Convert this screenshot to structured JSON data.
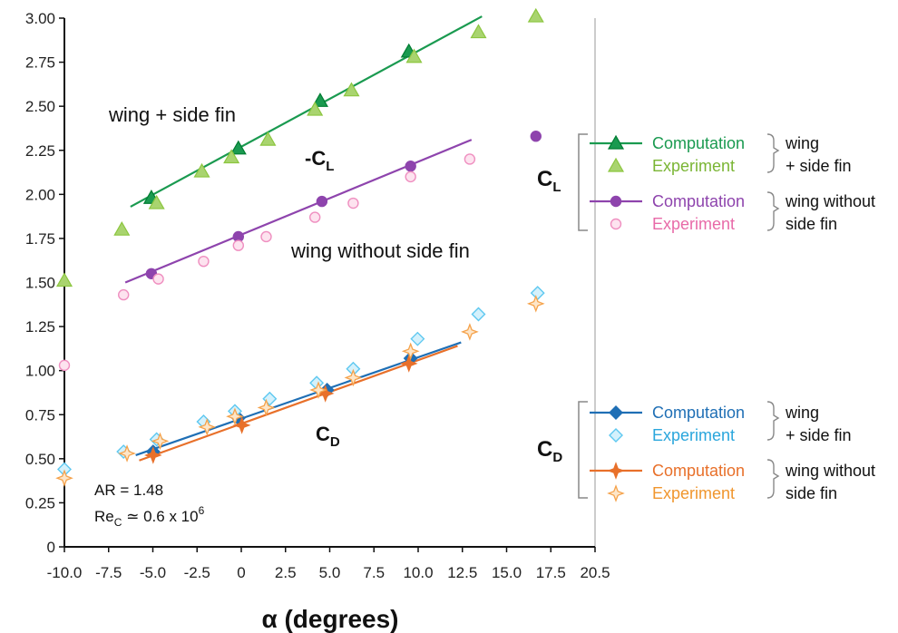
{
  "chart_data": {
    "type": "scatter",
    "xlabel": "α (degrees)",
    "xlim": [
      -10,
      20.5
    ],
    "ylim": [
      0,
      3
    ],
    "x_ticks": [
      "-10.0",
      "-7.5",
      "-5.0",
      "-2.5",
      "0",
      "2.5",
      "5.0",
      "7.5",
      "10.0",
      "12.5",
      "15.0",
      "17.5",
      "20.5"
    ],
    "y_ticks": [
      "0",
      "0.25",
      "0.50",
      "0.75",
      "1.00",
      "1.25",
      "1.50",
      "1.75",
      "2.00",
      "2.25",
      "2.50",
      "2.75",
      "3.00"
    ],
    "annotations": {
      "wing_side_fin": "wing + side fin",
      "neg_cl": "-C",
      "neg_cl_sub": "L",
      "wing_without": "wing without side fin",
      "cd": "C",
      "cd_sub": "D",
      "ar": "AR = 1.48",
      "re_main": "Re",
      "re_sub": "C",
      "re_rest": " ≃ 0.6 x 10",
      "re_sup": "6"
    },
    "legend": {
      "cl_group": {
        "label": "C",
        "sub": "L"
      },
      "cd_group": {
        "label": "C",
        "sub": "D"
      },
      "computation": "Computation",
      "experiment": "Experiment",
      "config_with_line1": "wing",
      "config_with_line2": "+ side fin",
      "config_without_line1": "wing without",
      "config_without_line2": "side fin"
    },
    "series": [
      {
        "quantity": "-CL",
        "config": "wing + side fin",
        "kind": "computation",
        "marker": "triangle",
        "color": "#1a9a50",
        "x": [
          -5.0,
          0.0,
          4.7,
          9.8
        ],
        "y": [
          1.98,
          2.26,
          2.53,
          2.81
        ],
        "fit": [
          [
            -6.2,
            1.93
          ],
          [
            14.0,
            3.01
          ]
        ]
      },
      {
        "quantity": "-CL",
        "config": "wing + side fin",
        "kind": "experiment",
        "marker": "triangle",
        "color": "#8cc63f",
        "x": [
          -10.0,
          -6.7,
          -4.7,
          -2.1,
          -0.4,
          1.7,
          4.4,
          6.5,
          10.1,
          13.8,
          17.1
        ],
        "y": [
          1.51,
          1.8,
          1.95,
          2.13,
          2.21,
          2.31,
          2.48,
          2.59,
          2.78,
          2.92,
          3.01
        ]
      },
      {
        "quantity": "-CL",
        "config": "wing without side fin",
        "kind": "computation",
        "marker": "circle",
        "color": "#8e44ad",
        "x": [
          -5.0,
          0.0,
          4.8,
          9.9,
          17.1
        ],
        "y": [
          1.55,
          1.76,
          1.96,
          2.16,
          2.33
        ],
        "fit": [
          [
            -6.5,
            1.5
          ],
          [
            13.4,
            2.31
          ]
        ]
      },
      {
        "quantity": "-CL",
        "config": "wing without side fin",
        "kind": "experiment",
        "marker": "circle",
        "color": "#ef8fc0",
        "x": [
          -10.0,
          -6.6,
          -4.6,
          -2.0,
          0.0,
          1.6,
          4.4,
          6.6,
          9.9,
          13.3
        ],
        "y": [
          1.03,
          1.43,
          1.52,
          1.62,
          1.71,
          1.76,
          1.87,
          1.95,
          2.1,
          2.2
        ]
      },
      {
        "quantity": "CD",
        "config": "wing + side fin",
        "kind": "computation",
        "marker": "diamond",
        "color": "#1f6fb5",
        "x": [
          -4.9,
          0.0,
          5.1,
          9.9
        ],
        "y": [
          0.54,
          0.73,
          0.89,
          1.07
        ],
        "fit": [
          [
            -5.9,
            0.52
          ],
          [
            12.8,
            1.16
          ]
        ]
      },
      {
        "quantity": "CD",
        "config": "wing + side fin",
        "kind": "experiment",
        "marker": "diamond",
        "color": "#5ec8f0",
        "x": [
          -10.0,
          -6.6,
          -4.7,
          -2.0,
          -0.2,
          1.8,
          4.5,
          6.6,
          10.3,
          13.8,
          17.2
        ],
        "y": [
          0.44,
          0.54,
          0.61,
          0.71,
          0.77,
          0.84,
          0.93,
          1.01,
          1.18,
          1.32,
          1.44
        ]
      },
      {
        "quantity": "CD",
        "config": "wing without side fin",
        "kind": "computation",
        "marker": "star4",
        "color": "#e8702a",
        "x": [
          -4.9,
          0.2,
          5.0,
          9.8
        ],
        "y": [
          0.52,
          0.69,
          0.87,
          1.04
        ],
        "fit": [
          [
            -5.7,
            0.49
          ],
          [
            12.6,
            1.14
          ]
        ]
      },
      {
        "quantity": "CD",
        "config": "wing without side fin",
        "kind": "experiment",
        "marker": "star4",
        "color": "#f5a24b",
        "x": [
          -10.0,
          -6.4,
          -4.5,
          -1.8,
          -0.2,
          1.6,
          4.6,
          6.6,
          9.9,
          13.3,
          17.1
        ],
        "y": [
          0.39,
          0.53,
          0.6,
          0.68,
          0.74,
          0.79,
          0.89,
          0.96,
          1.11,
          1.22,
          1.38
        ]
      }
    ]
  }
}
